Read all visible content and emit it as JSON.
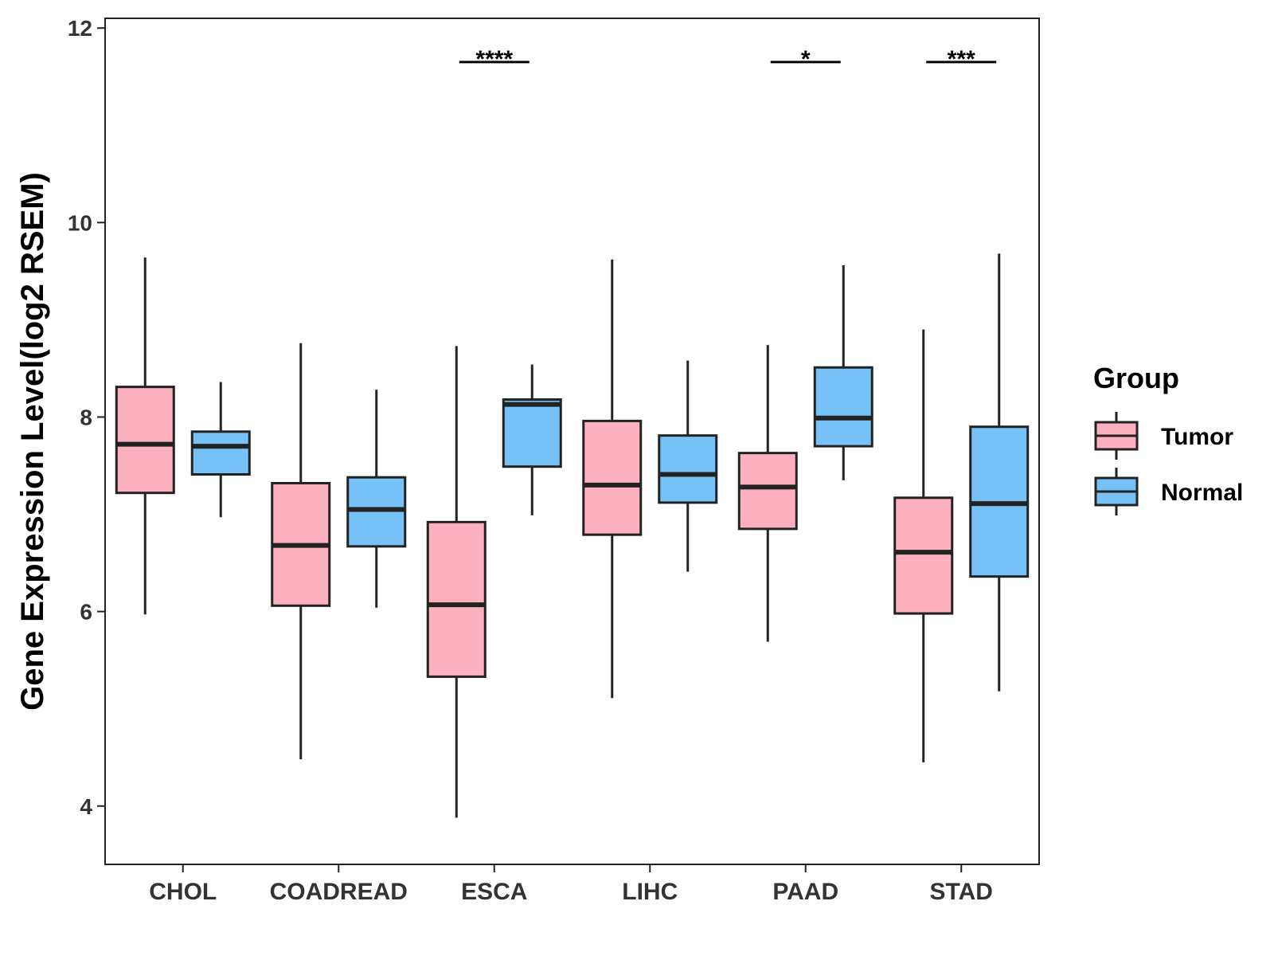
{
  "chart_data": {
    "type": "boxplot",
    "title": "",
    "xlabel": "",
    "ylabel": "Gene Expression Level(log2 RSEM)",
    "ylim": [
      3.4,
      12.1
    ],
    "yticks": [
      4,
      6,
      8,
      10,
      12
    ],
    "categories": [
      "CHOL",
      "COADREAD",
      "ESCA",
      "LIHC",
      "PAAD",
      "STAD"
    ],
    "legend": {
      "title": "Group",
      "position": "right",
      "entries": [
        {
          "name": "Tumor",
          "color": "#FDB0C0"
        },
        {
          "name": "Normal",
          "color": "#76C1F6"
        }
      ]
    },
    "series": [
      {
        "name": "Tumor",
        "color": "#FDB0C0",
        "boxes": [
          {
            "whisker_low": 5.97,
            "q1": 7.22,
            "median": 7.72,
            "q3": 8.31,
            "whisker_high": 9.64
          },
          {
            "whisker_low": 4.48,
            "q1": 6.06,
            "median": 6.68,
            "q3": 7.32,
            "whisker_high": 8.76
          },
          {
            "whisker_low": 3.88,
            "q1": 5.33,
            "median": 6.07,
            "q3": 6.92,
            "whisker_high": 8.73
          },
          {
            "whisker_low": 5.11,
            "q1": 6.79,
            "median": 7.3,
            "q3": 7.96,
            "whisker_high": 9.62
          },
          {
            "whisker_low": 5.69,
            "q1": 6.85,
            "median": 7.28,
            "q3": 7.63,
            "whisker_high": 8.74
          },
          {
            "whisker_low": 4.45,
            "q1": 5.98,
            "median": 6.61,
            "q3": 7.17,
            "whisker_high": 8.9
          }
        ]
      },
      {
        "name": "Normal",
        "color": "#76C1F6",
        "boxes": [
          {
            "whisker_low": 6.97,
            "q1": 7.41,
            "median": 7.7,
            "q3": 7.85,
            "whisker_high": 8.36
          },
          {
            "whisker_low": 6.04,
            "q1": 6.67,
            "median": 7.05,
            "q3": 7.38,
            "whisker_high": 8.28
          },
          {
            "whisker_low": 6.99,
            "q1": 7.49,
            "median": 8.13,
            "q3": 8.18,
            "whisker_high": 8.54
          },
          {
            "whisker_low": 6.41,
            "q1": 7.12,
            "median": 7.41,
            "q3": 7.81,
            "whisker_high": 8.58
          },
          {
            "whisker_low": 7.35,
            "q1": 7.7,
            "median": 7.99,
            "q3": 8.51,
            "whisker_high": 9.56
          },
          {
            "whisker_low": 5.18,
            "q1": 6.36,
            "median": 7.11,
            "q3": 7.9,
            "whisker_high": 9.68
          }
        ]
      }
    ],
    "significance": [
      {
        "category": "ESCA",
        "label": "****",
        "y": 11.65
      },
      {
        "category": "PAAD",
        "label": "*",
        "y": 11.65
      },
      {
        "category": "STAD",
        "label": "***",
        "y": 11.65
      }
    ]
  }
}
